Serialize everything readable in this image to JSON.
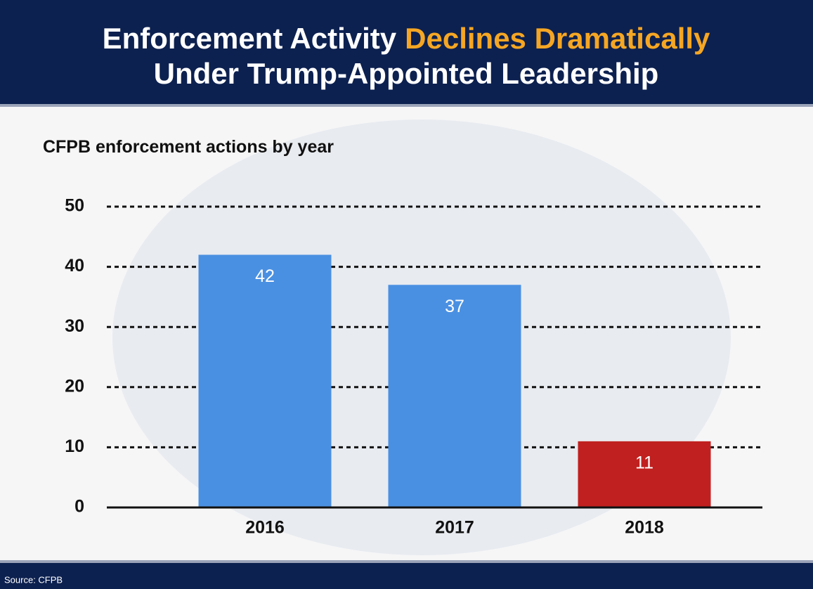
{
  "chart_data": {
    "type": "bar",
    "title": {
      "line1": [
        "Enforcement Activity",
        "Declines Dramatically"
      ],
      "line2": "Under Trump-Appointed Leadership"
    },
    "title_highlight_color": "#f5a623",
    "y_axis_label": "CFPB enforcement actions by year",
    "categories": [
      "2016",
      "2017",
      "2018"
    ],
    "values": [
      42,
      37,
      11
    ],
    "colors": [
      "#4a90e2",
      "#4a90e2",
      "#c0201f"
    ],
    "ylim": [
      0,
      50
    ],
    "yticks": [
      0,
      10,
      20,
      30,
      40,
      50
    ],
    "grid": true,
    "source": "Source: CFPB"
  }
}
